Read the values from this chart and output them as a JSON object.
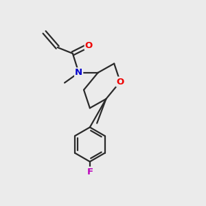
{
  "background_color": "#ebebeb",
  "bond_color": "#2a2a2a",
  "atom_colors": {
    "O": "#ee0000",
    "N": "#0000cc",
    "F": "#bb00bb"
  },
  "figsize": [
    3.0,
    3.0
  ],
  "dpi": 100
}
